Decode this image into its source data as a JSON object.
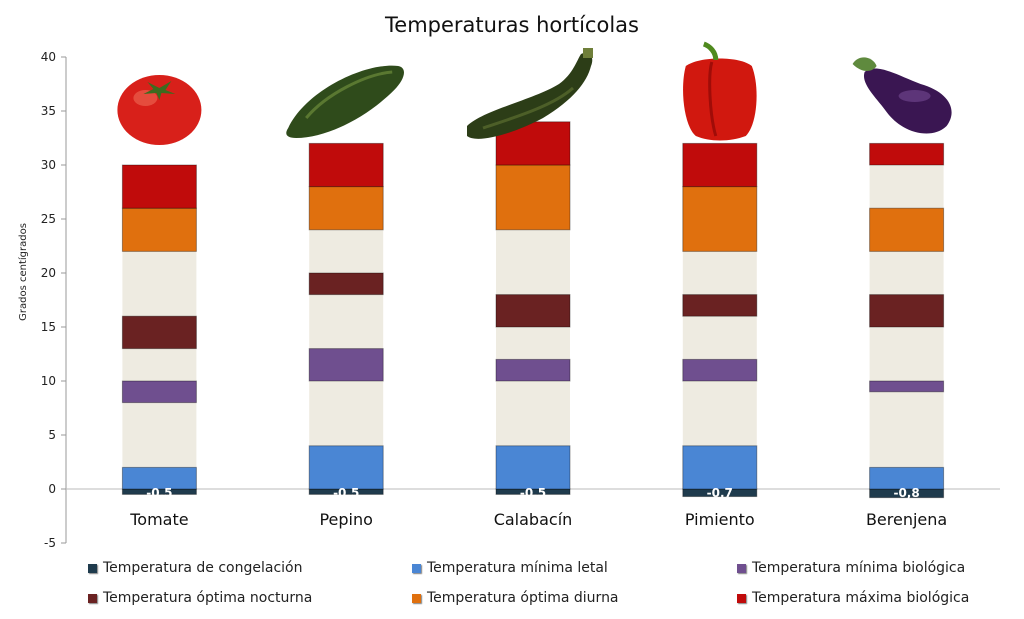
{
  "chart_data": {
    "type": "bar",
    "stacked": true,
    "title": "Temperaturas hortícolas",
    "xlabel": "",
    "ylabel": "Grados centígrados",
    "ylim": [
      -5,
      40
    ],
    "yticks": [
      -5,
      0,
      5,
      10,
      15,
      20,
      25,
      30,
      35,
      40
    ],
    "grid": false,
    "legend_position": "bottom",
    "categories": [
      "Tomate",
      "Pepino",
      "Calabacín",
      "Pimiento",
      "Berenjena"
    ],
    "series": [
      {
        "name": "Temperatura de congelación",
        "color": "#1f3b4d",
        "values": [
          -0.5,
          -0.5,
          -0.5,
          -0.7,
          -0.8
        ]
      },
      {
        "name": "Temperatura mínima letal",
        "color": "#4a86d4",
        "values": [
          2,
          4,
          4,
          4,
          2
        ]
      },
      {
        "name": "Temperatura mínima biológica",
        "color": "#6f4f8f",
        "ranges": [
          [
            8,
            10
          ],
          [
            10,
            13
          ],
          [
            10,
            12
          ],
          [
            10,
            12
          ],
          [
            9,
            10
          ]
        ]
      },
      {
        "name": "Temperatura óptima nocturna",
        "color": "#6a2222",
        "ranges": [
          [
            13,
            16
          ],
          [
            18,
            20
          ],
          [
            15,
            18
          ],
          [
            16,
            18
          ],
          [
            15,
            18
          ]
        ]
      },
      {
        "name": "Temperatura óptima diurna",
        "color": "#e0700e",
        "ranges": [
          [
            22,
            26
          ],
          [
            24,
            28
          ],
          [
            24,
            30
          ],
          [
            22,
            28
          ],
          [
            22,
            26
          ]
        ]
      },
      {
        "name": "Temperatura máxima biológica",
        "color": "#c00b0b",
        "ranges": [
          [
            26,
            30
          ],
          [
            28,
            32
          ],
          [
            30,
            34
          ],
          [
            28,
            32
          ],
          [
            30,
            32
          ]
        ]
      }
    ],
    "data_labels": [
      "-0,5",
      "-0,5",
      "-0,5",
      "-0,7",
      "-0,8"
    ],
    "gap_color": "#eeebe1"
  },
  "vegetable_icons": [
    "tomato-icon",
    "cucumber-icon",
    "zucchini-icon",
    "pepper-icon",
    "eggplant-icon"
  ]
}
